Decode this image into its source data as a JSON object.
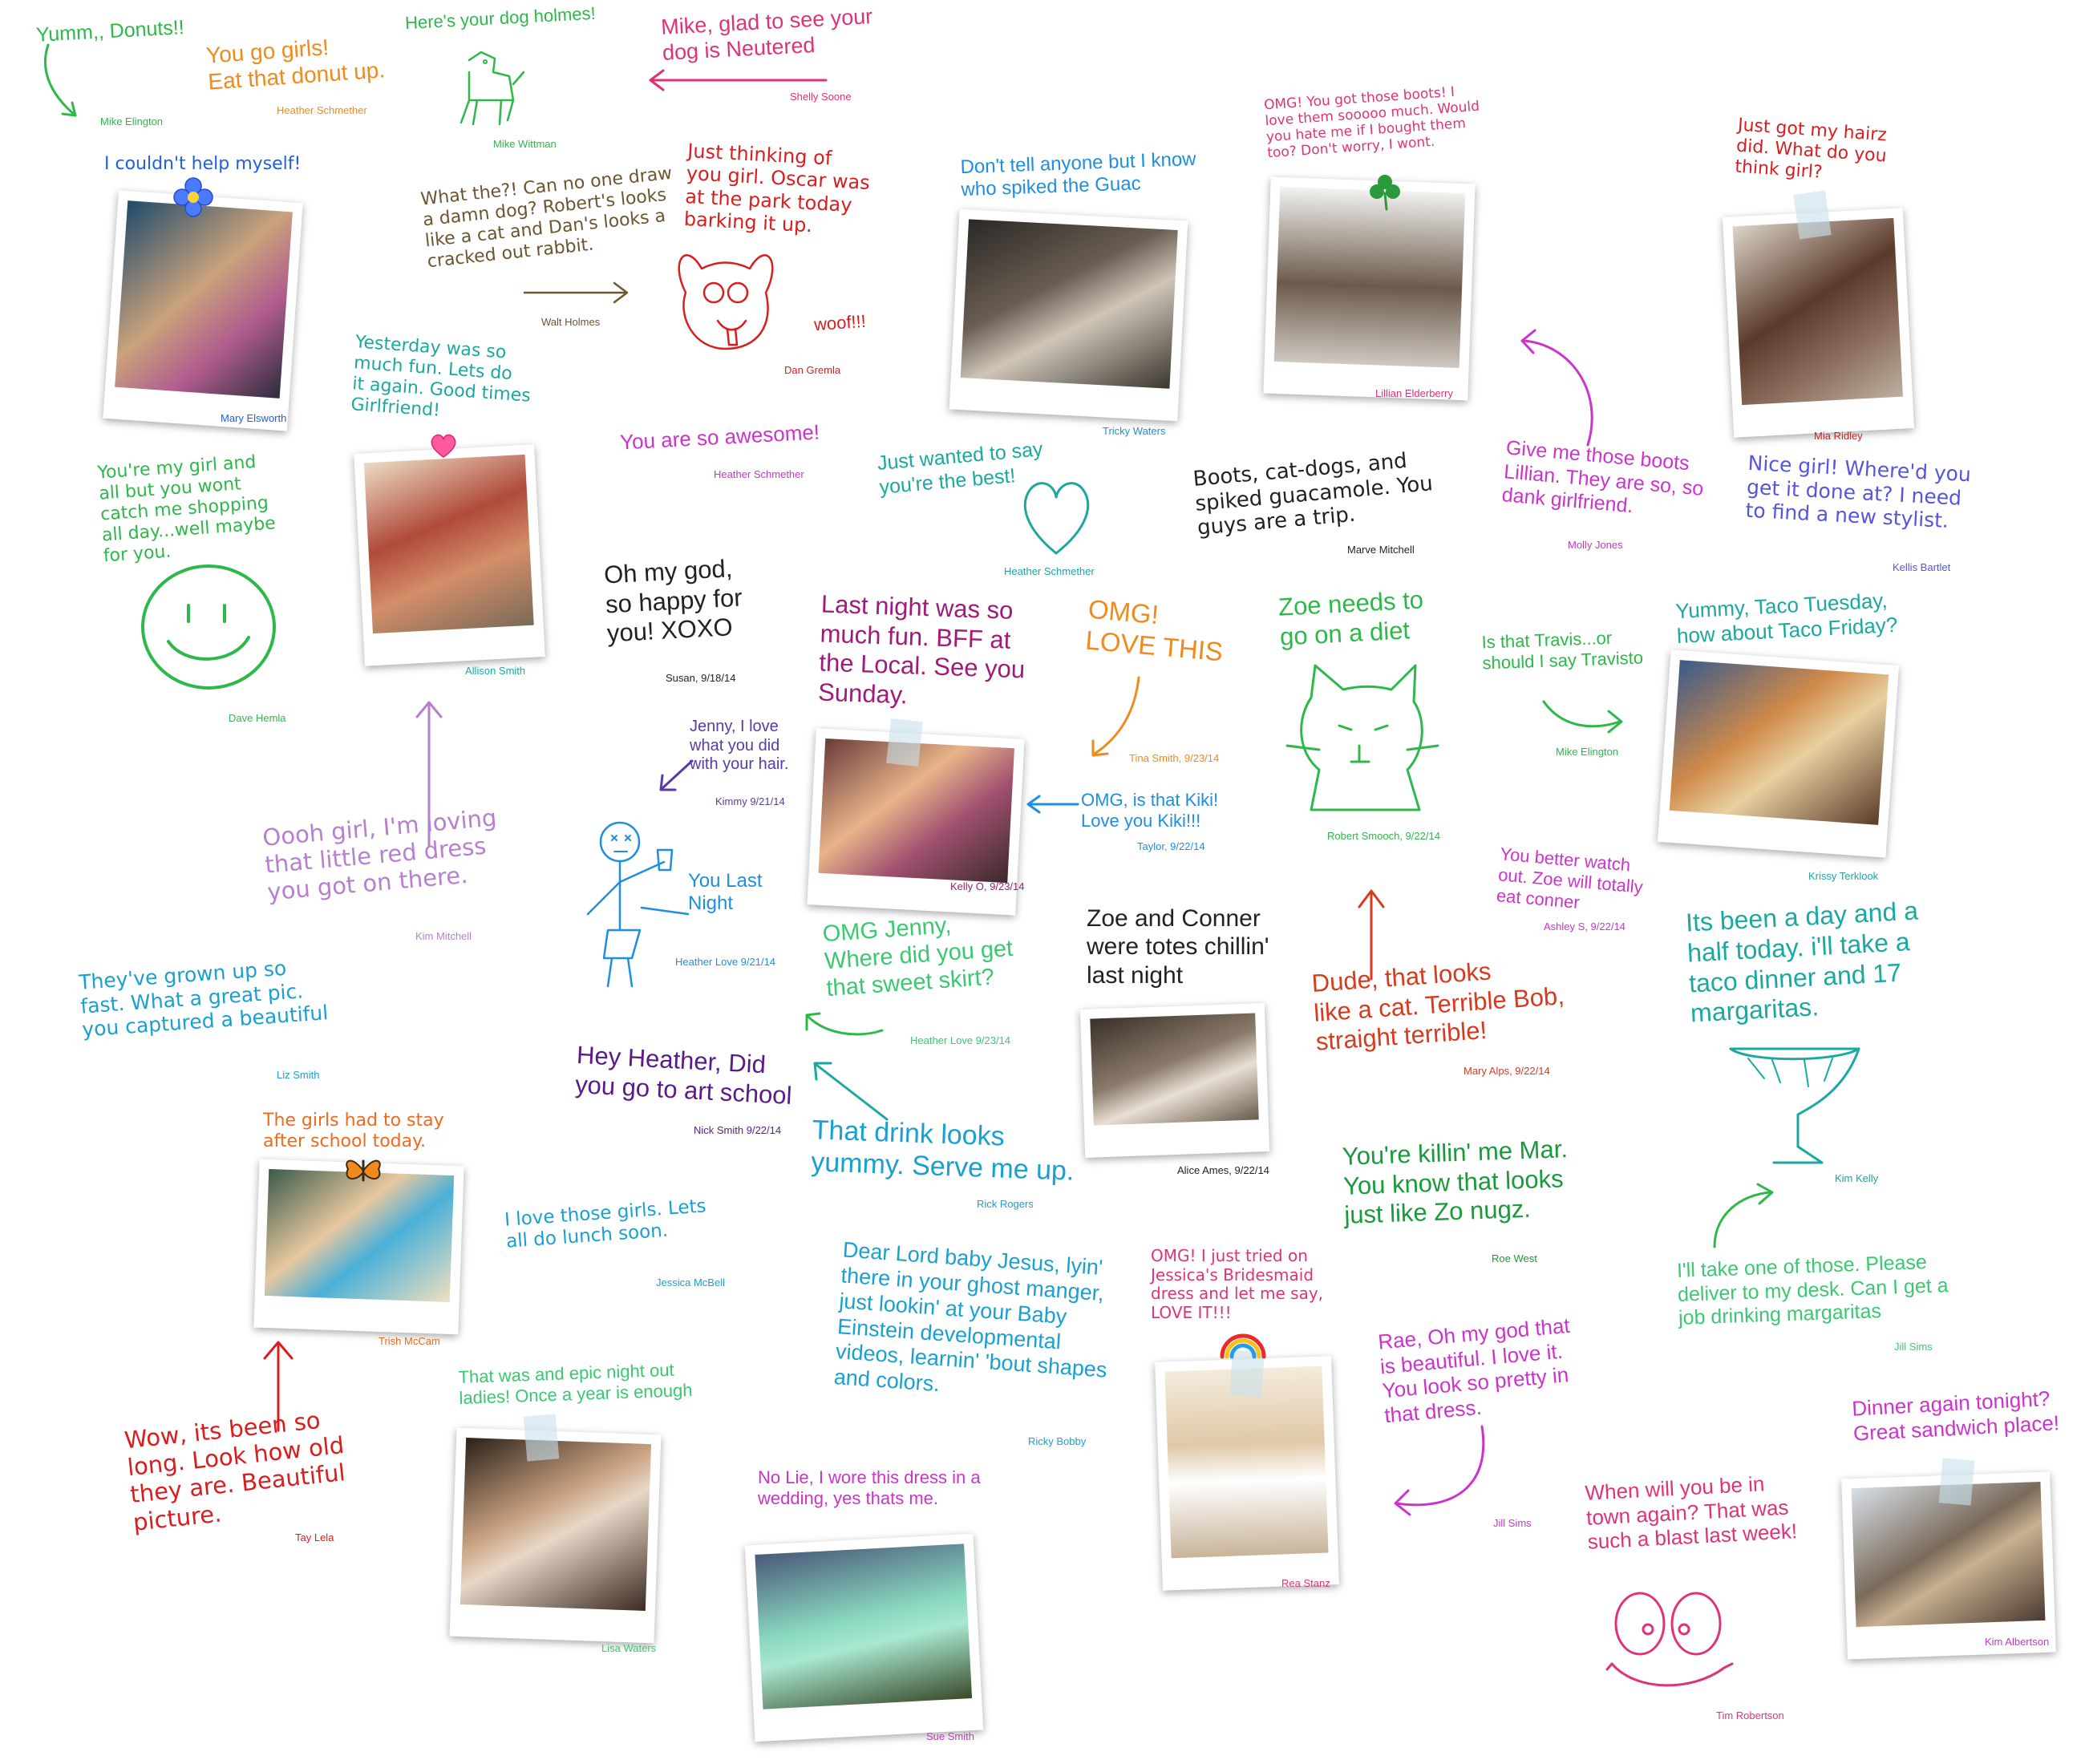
{
  "notes": {
    "n1": {
      "text": "Yumm,, Donuts!!",
      "sig": "Mike Elington"
    },
    "n2": {
      "text": "You go girls!\nEat that donut up.",
      "sig": "Heather Schmether"
    },
    "n3": {
      "text": "Here's your dog holmes!",
      "sig": "Mike Wittman"
    },
    "n4": {
      "text": "Mike, glad to see your\ndog is Neutered",
      "sig": "Shelly Soone"
    },
    "n5": {
      "text": "I couldn't help myself!",
      "sig": "Mary Elsworth"
    },
    "n6": {
      "text": "What the?! Can no one draw\na damn dog? Robert's looks\nlike a cat and Dan's looks a\ncracked out rabbit.",
      "sig": "Walt Holmes"
    },
    "n7": {
      "text": "Just thinking of\nyou girl. Oscar was\nat the park today\nbarking it up.",
      "sig": "Dan Gremla",
      "woof": "woof!!!"
    },
    "n8": {
      "text": "Don't tell anyone but I know\nwho spiked the Guac",
      "sig": "Tricky Waters"
    },
    "n9": {
      "text": "OMG! You got those boots! I\nlove them sooooo much. Would\nyou hate me if I bought them\ntoo? Don't worry, I wont.",
      "sig": "Lillian Elderberry"
    },
    "n10": {
      "text": "Just got my hairz\ndid. What do you\nthink girl?",
      "sig": "Mia Ridley"
    },
    "n11": {
      "text": "Yesterday was so\nmuch fun. Lets do\nit again. Good times\nGirlfriend!",
      "sig": "Allison Smith"
    },
    "n12": {
      "text": "You're my girl and\nall but you wont\ncatch me shopping\nall day...well maybe\nfor you.",
      "sig": "Dave Hemla"
    },
    "n13": {
      "text": "You are so awesome!",
      "sig": "Heather Schmether"
    },
    "n14": {
      "text": "Just wanted to say\nyou're the best!",
      "sig": "Heather Schmether"
    },
    "n15": {
      "text": "Boots, cat-dogs, and\nspiked guacamole. You\nguys are a trip.",
      "sig": "Marve Mitchell"
    },
    "n16": {
      "text": "Give me those boots\nLillian. They are so, so\ndank girlfriend.",
      "sig": "Molly Jones"
    },
    "n17": {
      "text": "Nice girl! Where'd you\nget it done at? I need\nto find a new stylist.",
      "sig": "Kellis Bartlet"
    },
    "n18": {
      "text": "Oh my god,\nso happy for\nyou! XOXO",
      "sig": "Susan, 9/18/14"
    },
    "n19": {
      "text": "Last night was so\nmuch fun. BFF at\nthe Local. See you\nSunday.",
      "sig": "Kelly O, 9/23/14"
    },
    "n20": {
      "text": "OMG!\nLOVE THIS",
      "sig": "Tina Smith, 9/23/14"
    },
    "n21": {
      "text": "Zoe needs to\ngo on a diet",
      "sig": "Robert Smooch, 9/22/14"
    },
    "n22": {
      "text": "Is that Travis...or\nshould I say Travisto",
      "sig": "Mike Elington"
    },
    "n23": {
      "text": "Yummy, Taco Tuesday,\nhow about Taco Friday?",
      "sig": "Krissy Terklook"
    },
    "n24": {
      "text": "Jenny, I love\nwhat you did\nwith your hair.",
      "sig": "Kimmy 9/21/14"
    },
    "n25": {
      "text": "OMG, is that Kiki!\nLove you Kiki!!!",
      "sig": "Taylor, 9/22/14"
    },
    "n26": {
      "text": "Oooh girl, I'm loving\nthat little red dress\nyou got on there.",
      "sig": "Kim Mitchell"
    },
    "n27": {
      "text": "You Last\nNight",
      "sig": "Heather Love 9/21/14"
    },
    "n28": {
      "text": "OMG Jenny,\nWhere did you get\nthat sweet skirt?",
      "sig": "Heather Love 9/23/14"
    },
    "n29": {
      "text": "Zoe and Conner\nwere totes chillin'\nlast night",
      "sig": "Alice Ames, 9/22/14"
    },
    "n30": {
      "text": "Dude, that looks\nlike a cat. Terrible Bob,\nstraight terrible!",
      "sig": "Mary Alps, 9/22/14"
    },
    "n31": {
      "text": "You better watch\nout. Zoe will totally\neat conner",
      "sig": "Ashley S, 9/22/14"
    },
    "n32": {
      "text": "Its been a day and a\nhalf today. i'll take a\ntaco dinner and 17\nmargaritas.",
      "sig": "Kim Kelly"
    },
    "n33": {
      "text": "They've grown up so\nfast. What a great pic.\nyou captured a beautiful",
      "sig": "Liz Smith"
    },
    "n34": {
      "text": "Hey Heather, Did\nyou go to art school",
      "sig": "Nick Smith 9/22/14"
    },
    "n35": {
      "text": "That drink looks\nyummy. Serve me up.",
      "sig": "Rick Rogers"
    },
    "n36": {
      "text": "You're killin' me Mar.\nYou know that looks\njust like Zo nugz.",
      "sig": "Roe West"
    },
    "n37": {
      "text": "The girls had to stay\nafter school today.",
      "sig": "Trish McCam"
    },
    "n38": {
      "text": "I love those girls. Lets\nall do lunch soon.",
      "sig": "Jessica McBell"
    },
    "n39": {
      "text": "Dear Lord baby Jesus, lyin'\nthere in your ghost manger,\njust lookin' at your Baby\nEinstein developmental\nvideos, learnin' 'bout shapes\nand colors.",
      "sig": "Ricky Bobby"
    },
    "n40": {
      "text": "OMG! I just tried on\nJessica's Bridesmaid\ndress and let me say,\nLOVE IT!!!",
      "sig": "Rea Stanz"
    },
    "n41": {
      "text": "Rae, Oh my god that\nis beautiful. I love it.\nYou look so pretty in\nthat dress.",
      "sig": "Jill Sims"
    },
    "n42": {
      "text": "I'll take one of those. Please\ndeliver to my desk. Can I get a\njob drinking margaritas",
      "sig": "Jill Sims"
    },
    "n43": {
      "text": "Wow, its been so\nlong. Look how old\nthey are. Beautiful\npicture.",
      "sig": "Tay Lela"
    },
    "n44": {
      "text": "That was and epic night out\nladies! Once a year is enough",
      "sig": "Lisa Waters"
    },
    "n45": {
      "text": "No Lie, I wore this dress in a\nwedding, yes thats me.",
      "sig": "Sue Smith"
    },
    "n46": {
      "text": "Dinner again tonight?\nGreat sandwich place!",
      "sig": "Kim Albertson"
    },
    "n47": {
      "text": "When will you be in\ntown again? That was\nsuch a blast last week!",
      "sig": "Tim Robertson"
    }
  },
  "colors": {
    "green": "#2db84a",
    "orange": "#f08a1c",
    "pink": "#e0327a",
    "blue": "#1e5ee8",
    "brown": "#6b5630",
    "red": "#d81e1e",
    "teal": "#1aa8a0",
    "magenta": "#cc33cc",
    "purple": "#5a3aa8",
    "violet": "#5555dd",
    "black": "#222222",
    "lilac": "#b67fd0"
  }
}
